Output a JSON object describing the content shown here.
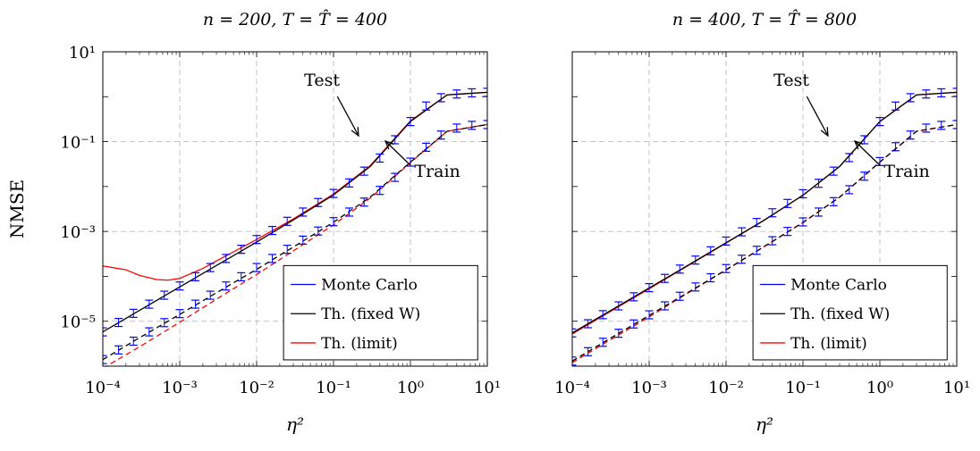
{
  "chart_data": [
    {
      "type": "line",
      "title": "n = 200, T = T̂ = 400",
      "xlabel": "η²",
      "ylabel": "NMSE",
      "xscale": "log",
      "yscale": "log",
      "xlim": [
        0.0001,
        10
      ],
      "ylim": [
        1e-06,
        10
      ],
      "xticks": [
        0.0001,
        0.001,
        0.01,
        0.1,
        1,
        10
      ],
      "xtick_labels": [
        "10⁻⁴",
        "10⁻³",
        "10⁻²",
        "10⁻¹",
        "10⁰",
        "10¹"
      ],
      "yticks": [
        1e-05,
        0.001,
        0.1,
        10
      ],
      "ytick_labels": [
        "10⁻⁵",
        "10⁻³",
        "10⁻¹",
        "10¹"
      ],
      "grid": true,
      "legend_position": "bottom-right",
      "legend": [
        "Monte Carlo",
        "Th. (fixed W)",
        "Th. (limit)"
      ],
      "annotations": [
        {
          "text": "Test",
          "x": 0.14,
          "y": 1.1
        },
        {
          "text": "Train",
          "x": 3.5,
          "y": 0.05
        }
      ],
      "series": [
        {
          "name": "Monte Carlo",
          "color": "#0000ff",
          "style": "errorbars",
          "x": [
            0.0001,
            0.00016,
            0.00025,
            0.0004,
            0.00063,
            0.001,
            0.0016,
            0.0025,
            0.004,
            0.0063,
            0.01,
            0.016,
            0.025,
            0.04,
            0.063,
            0.1,
            0.16,
            0.25,
            0.4,
            0.63,
            1,
            1.6,
            2.5,
            4,
            6.3,
            10
          ],
          "y": [
            5.8e-06,
            9.4e-06,
            1.5e-05,
            2.4e-05,
            3.8e-05,
            6.1e-05,
            9.8e-05,
            0.000157,
            0.00025,
            0.0004,
            0.00066,
            0.00105,
            0.00168,
            0.0027,
            0.0044,
            0.007,
            0.012,
            0.022,
            0.043,
            0.11,
            0.28,
            0.62,
            0.95,
            1.15,
            1.22,
            1.25
          ]
        },
        {
          "name": "Monte Carlo (train)",
          "color": "#0000ff",
          "style": "errorbars",
          "x": [
            0.0001,
            0.00016,
            0.00025,
            0.0004,
            0.00063,
            0.001,
            0.0016,
            0.0025,
            0.004,
            0.0063,
            0.01,
            0.016,
            0.025,
            0.04,
            0.063,
            0.1,
            0.16,
            0.25,
            0.4,
            0.63,
            1,
            1.6,
            2.5,
            4,
            6.3,
            10
          ],
          "y": [
            1.4e-06,
            2.3e-06,
            3.6e-06,
            5.8e-06,
            9.3e-06,
            1.48e-05,
            2.4e-05,
            3.8e-05,
            6.1e-05,
            9.8e-05,
            0.000157,
            0.00025,
            0.0004,
            0.00064,
            0.00102,
            0.00165,
            0.0027,
            0.0045,
            0.0082,
            0.016,
            0.035,
            0.075,
            0.14,
            0.2,
            0.23,
            0.24
          ]
        },
        {
          "name": "Th. (fixed W)",
          "color": "#000000",
          "style": "solid",
          "x": [
            0.0001,
            0.0003,
            0.001,
            0.003,
            0.01,
            0.03,
            0.1,
            0.3,
            1,
            3,
            10
          ],
          "y": [
            5.8e-06,
            1.74e-05,
            5.8e-05,
            0.000174,
            0.00058,
            0.0018,
            0.0065,
            0.028,
            0.28,
            1.1,
            1.25
          ]
        },
        {
          "name": "Th. (fixed W) train",
          "color": "#000000",
          "style": "dashed",
          "x": [
            0.0001,
            0.0003,
            0.001,
            0.003,
            0.01,
            0.03,
            0.1,
            0.3,
            1,
            3,
            10
          ],
          "y": [
            1.4e-06,
            4.3e-06,
            1.42e-05,
            4.3e-05,
            0.000143,
            0.00045,
            0.0016,
            0.0058,
            0.035,
            0.17,
            0.24
          ]
        },
        {
          "name": "Th. (limit)",
          "color": "#ff0000",
          "style": "solid",
          "x": [
            0.0001,
            0.0002,
            0.0003,
            0.0005,
            0.0007,
            0.001,
            0.002,
            0.003,
            0.01,
            0.03,
            0.1,
            0.3,
            1,
            3,
            10
          ],
          "y": [
            0.00017,
            0.00014,
            0.000105,
            8.5e-05,
            8.2e-05,
            9e-05,
            0.00015,
            0.00022,
            0.00066,
            0.0019,
            0.0068,
            0.029,
            0.29,
            1.1,
            1.25
          ]
        },
        {
          "name": "Th. (limit) train",
          "color": "#ff0000",
          "style": "dashed",
          "x": [
            0.0001,
            0.0003,
            0.001,
            0.003,
            0.01,
            0.03,
            0.1,
            0.3,
            1,
            3,
            10
          ],
          "y": [
            9e-07,
            2.7e-06,
            9.5e-06,
            3.1e-05,
            0.00011,
            0.00037,
            0.0014,
            0.0055,
            0.034,
            0.17,
            0.24
          ]
        }
      ]
    },
    {
      "type": "line",
      "title": "n = 400, T = T̂ = 800",
      "xlabel": "η²",
      "ylabel": "",
      "xscale": "log",
      "yscale": "log",
      "xlim": [
        0.0001,
        10
      ],
      "ylim": [
        1e-06,
        10
      ],
      "xticks": [
        0.0001,
        0.001,
        0.01,
        0.1,
        1,
        10
      ],
      "xtick_labels": [
        "10⁻⁴",
        "10⁻³",
        "10⁻²",
        "10⁻¹",
        "10⁰",
        "10¹"
      ],
      "yticks": [
        1e-05,
        0.001,
        0.1,
        10
      ],
      "ytick_labels": [],
      "grid": true,
      "legend_position": "bottom-right",
      "legend": [
        "Monte Carlo",
        "Th. (fixed W)",
        "Th. (limit)"
      ],
      "annotations": [
        {
          "text": "Test",
          "x": 0.14,
          "y": 1.1
        },
        {
          "text": "Train",
          "x": 3.5,
          "y": 0.05
        }
      ],
      "series": [
        {
          "name": "Monte Carlo",
          "color": "#0000ff",
          "style": "errorbars",
          "x": [
            0.0001,
            0.00016,
            0.00025,
            0.0004,
            0.00063,
            0.001,
            0.0016,
            0.0025,
            0.004,
            0.0063,
            0.01,
            0.016,
            0.025,
            0.04,
            0.063,
            0.1,
            0.16,
            0.25,
            0.4,
            0.63,
            1,
            1.6,
            2.5,
            4,
            6.3,
            10
          ],
          "y": [
            5.5e-06,
            8.8e-06,
            1.4e-05,
            2.2e-05,
            3.5e-05,
            5.6e-05,
            9e-05,
            0.000145,
            0.00023,
            0.00037,
            0.00061,
            0.00098,
            0.00158,
            0.0026,
            0.0042,
            0.0069,
            0.0118,
            0.022,
            0.044,
            0.11,
            0.28,
            0.62,
            0.95,
            1.15,
            1.22,
            1.25
          ]
        },
        {
          "name": "Monte Carlo (train)",
          "color": "#0000ff",
          "style": "errorbars",
          "x": [
            0.0001,
            0.00016,
            0.00025,
            0.0004,
            0.00063,
            0.001,
            0.0016,
            0.0025,
            0.004,
            0.0063,
            0.01,
            0.016,
            0.025,
            0.04,
            0.063,
            0.1,
            0.16,
            0.25,
            0.4,
            0.63,
            1,
            1.6,
            2.5,
            4,
            6.3,
            10
          ],
          "y": [
            1.3e-06,
            2.1e-06,
            3.4e-06,
            5.4e-06,
            8.7e-06,
            1.39e-05,
            2.2e-05,
            3.6e-05,
            5.8e-05,
            9.3e-05,
            0.000149,
            0.00024,
            0.00038,
            0.00062,
            0.001,
            0.00163,
            0.0027,
            0.0046,
            0.0085,
            0.017,
            0.036,
            0.077,
            0.14,
            0.2,
            0.23,
            0.24
          ]
        },
        {
          "name": "Th. (fixed W)",
          "color": "#000000",
          "style": "solid",
          "x": [
            0.0001,
            0.0003,
            0.001,
            0.003,
            0.01,
            0.03,
            0.1,
            0.3,
            1,
            3,
            10
          ],
          "y": [
            5.5e-06,
            1.65e-05,
            5.5e-05,
            0.000165,
            0.00056,
            0.0017,
            0.0064,
            0.028,
            0.28,
            1.1,
            1.25
          ]
        },
        {
          "name": "Th. (fixed W) train",
          "color": "#000000",
          "style": "dashed",
          "x": [
            0.0001,
            0.0003,
            0.001,
            0.003,
            0.01,
            0.03,
            0.1,
            0.3,
            1,
            3,
            10
          ],
          "y": [
            1.3e-06,
            4e-06,
            1.35e-05,
            4.1e-05,
            0.00014,
            0.00044,
            0.00158,
            0.0058,
            0.035,
            0.17,
            0.24
          ]
        },
        {
          "name": "Th. (limit)",
          "color": "#ff0000",
          "style": "solid",
          "x": [
            0.0001,
            0.0003,
            0.001,
            0.003,
            0.01,
            0.03,
            0.1,
            0.3,
            1,
            3,
            10
          ],
          "y": [
            5.2e-06,
            1.58e-05,
            5.3e-05,
            0.000162,
            0.00055,
            0.0017,
            0.0064,
            0.028,
            0.28,
            1.1,
            1.25
          ]
        },
        {
          "name": "Th. (limit) train",
          "color": "#ff0000",
          "style": "dashed",
          "x": [
            0.0001,
            0.0003,
            0.001,
            0.003,
            0.01,
            0.03,
            0.1,
            0.3,
            1,
            3,
            10
          ],
          "y": [
            1.2e-06,
            3.7e-06,
            1.25e-05,
            4e-05,
            0.000138,
            0.00044,
            0.00158,
            0.0058,
            0.035,
            0.17,
            0.24
          ]
        }
      ]
    }
  ]
}
